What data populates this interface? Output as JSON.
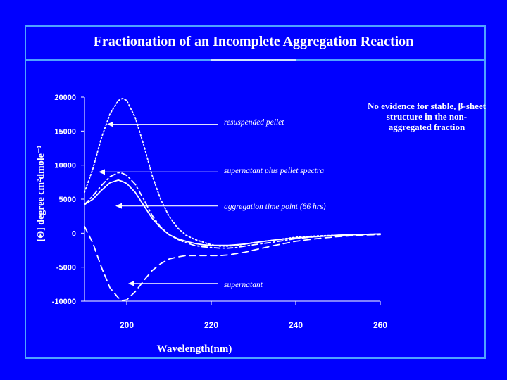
{
  "slide": {
    "title": "Fractionation of an Incomplete Aggregation Reaction",
    "note": "No evidence for stable, β-sheet structure in the non-aggregated fraction"
  },
  "chart_data": {
    "type": "line",
    "xlabel": "Wavelength(nm)",
    "ylabel": "[Θ] degree cm²dmole⁻¹",
    "xlim": [
      190,
      260
    ],
    "ylim": [
      -10000,
      20000
    ],
    "x_ticks": [
      200,
      220,
      240,
      260
    ],
    "y_ticks": [
      20000,
      15000,
      10000,
      5000,
      0,
      -5000,
      -10000
    ],
    "grid": false,
    "series": [
      {
        "name": "resuspended pellet",
        "style": "dotted",
        "x": [
          190,
          192,
          194,
          196,
          198,
          199,
          200,
          202,
          204,
          206,
          208,
          210,
          212,
          214,
          216,
          218,
          220,
          222,
          224,
          226,
          228,
          230,
          235,
          240,
          245,
          250,
          255,
          260
        ],
        "values": [
          6000,
          9500,
          14000,
          17500,
          19500,
          19800,
          19500,
          17000,
          13000,
          8500,
          5000,
          2500,
          800,
          -300,
          -900,
          -1300,
          -1700,
          -1900,
          -1900,
          -1800,
          -1600,
          -1400,
          -1000,
          -600,
          -400,
          -300,
          -200,
          -200
        ]
      },
      {
        "name": "supernatant plus pellet spectra",
        "style": "dash-dot",
        "x": [
          190,
          192,
          194,
          196,
          198,
          199,
          200,
          202,
          204,
          206,
          208,
          210,
          212,
          214,
          216,
          218,
          220,
          222,
          224,
          226,
          228,
          230,
          235,
          240,
          245,
          250,
          255,
          260
        ],
        "values": [
          4200,
          5500,
          7000,
          8300,
          8900,
          8800,
          8500,
          7200,
          5000,
          2600,
          900,
          -200,
          -900,
          -1400,
          -1800,
          -2000,
          -2100,
          -2200,
          -2200,
          -2100,
          -1900,
          -1700,
          -1300,
          -800,
          -500,
          -300,
          -200,
          -100
        ]
      },
      {
        "name": "aggregation time point (86 hrs)",
        "style": "solid",
        "x": [
          190,
          192,
          194,
          196,
          198,
          199,
          200,
          202,
          204,
          206,
          208,
          210,
          212,
          214,
          216,
          218,
          220,
          222,
          224,
          226,
          228,
          230,
          235,
          240,
          245,
          250,
          255,
          260
        ],
        "values": [
          4200,
          5000,
          6300,
          7400,
          7800,
          7600,
          7300,
          6000,
          4100,
          2200,
          800,
          -200,
          -800,
          -1200,
          -1500,
          -1700,
          -1800,
          -1800,
          -1800,
          -1700,
          -1600,
          -1400,
          -1000,
          -700,
          -500,
          -300,
          -200,
          -100
        ]
      },
      {
        "name": "supernatant",
        "style": "long-dash",
        "x": [
          190,
          192,
          194,
          196,
          198,
          199,
          200,
          202,
          204,
          206,
          208,
          210,
          212,
          214,
          216,
          218,
          220,
          222,
          224,
          226,
          228,
          230,
          235,
          240,
          245,
          250,
          255,
          260
        ],
        "values": [
          1000,
          -1500,
          -5000,
          -8000,
          -9500,
          -9900,
          -9800,
          -8600,
          -7000,
          -5500,
          -4500,
          -3800,
          -3500,
          -3300,
          -3300,
          -3300,
          -3300,
          -3300,
          -3200,
          -3000,
          -2800,
          -2500,
          -1800,
          -1200,
          -800,
          -500,
          -300,
          -200
        ]
      }
    ],
    "annotations": [
      {
        "text": "resuspended pellet",
        "target_x": 194,
        "target_y": 16000
      },
      {
        "text": "supernatant plus pellet spectra",
        "target_x": 192,
        "target_y": 9000
      },
      {
        "text": "aggregation time point (86 hrs)",
        "target_x": 196,
        "target_y": 4000
      },
      {
        "text": "supernatant",
        "target_x": 199,
        "target_y": -7400
      }
    ],
    "colors": {
      "background": "#0000ff",
      "lines": "#ffffff",
      "text": "#ffffff",
      "frame": "#4fa3ff"
    }
  }
}
